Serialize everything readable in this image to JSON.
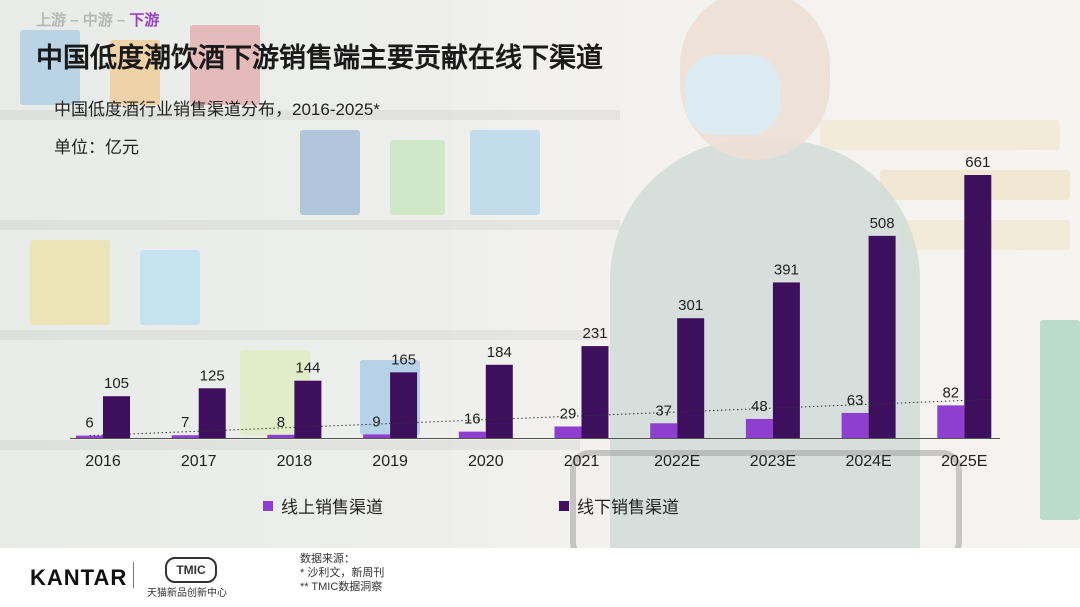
{
  "breadcrumb": {
    "item1": "上游",
    "sep1": " – ",
    "item2": "中游",
    "sep2": " – ",
    "item3": "下游"
  },
  "title": "中国低度潮饮酒下游销售端主要贡献在线下渠道",
  "subtitle": "中国低度酒行业销售渠道分布，2016-2025*",
  "unit": "单位：亿元",
  "colors": {
    "online": "#8e3fcf",
    "offline": "#3d0f5c",
    "accent": "#9a3fc8"
  },
  "chart_data": {
    "type": "bar",
    "categories": [
      "2016",
      "2017",
      "2018",
      "2019",
      "2020",
      "2021",
      "2022E",
      "2023E",
      "2024E",
      "2025E"
    ],
    "series": [
      {
        "name": "线上销售渠道",
        "values": [
          6,
          7,
          8,
          9,
          16,
          29,
          37,
          48,
          63,
          82
        ]
      },
      {
        "name": "线下销售渠道",
        "values": [
          105,
          125,
          144,
          165,
          184,
          231,
          301,
          391,
          508,
          661
        ]
      }
    ],
    "ylim": [
      0,
      661
    ],
    "trendline": "dotted line across online series",
    "grid": false,
    "legend": "bottom"
  },
  "footer": {
    "brand": "KANTAR",
    "partner_logo": "TMIC",
    "partner_name": "天猫新品创新中心",
    "source_label": "数据来源：",
    "source_1": "* 沙利文，新周刊",
    "source_2": "** TMIC数据洞察"
  }
}
